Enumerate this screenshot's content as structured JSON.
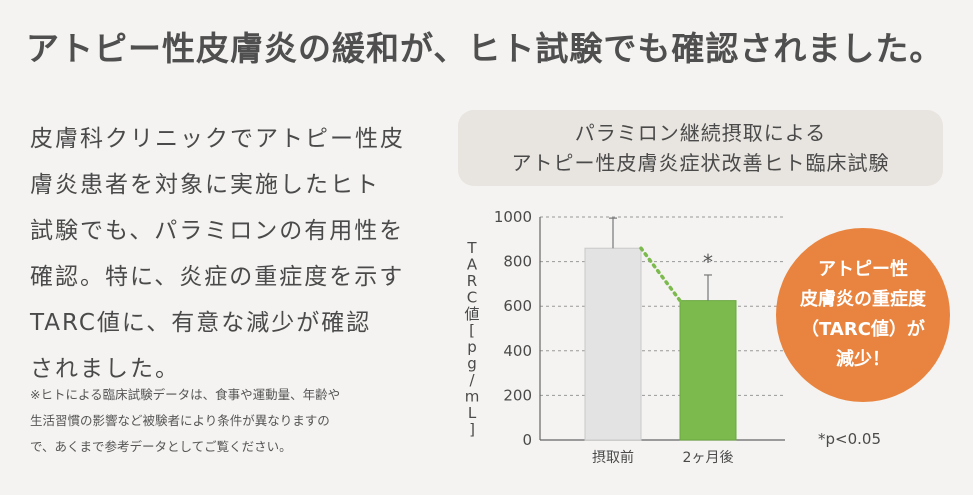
{
  "headline": "アトピー性皮膚炎の緩和が、ヒト試験でも確認されました。",
  "body_lines": [
    "皮膚科クリニックでアトピー性皮",
    "膚炎患者を対象に実施したヒト",
    "試験でも、パラミロンの有用性を",
    "確認。特に、炎症の重症度を示す",
    "TARC値に、有意な減少が確認",
    "されました。"
  ],
  "note_lines": [
    "※ヒトによる臨床試験データは、食事や運動量、年齢や",
    "生活習慣の影響など被験者により条件が異なりますの",
    "で、あくまで参考データとしてご覧ください。"
  ],
  "chart_title_lines": [
    "パラミロン継続摂取による",
    "アトピー性皮膚炎症状改善ヒト臨床試験"
  ],
  "badge": {
    "line1": "アトピー性",
    "line2_a": "皮膚炎の",
    "line2_b": "重症度",
    "line3": "（TARC値）が",
    "line4": "減少！"
  },
  "significance_note": "*p<0.05",
  "chart_data": {
    "type": "bar",
    "categories": [
      "摂取前",
      "2ヶ月後"
    ],
    "values": [
      860,
      625
    ],
    "error_upper": [
      995,
      740
    ],
    "ylabel": "TARC値[pg/mL]",
    "ylim": [
      0,
      1000
    ],
    "yticks": [
      "0",
      "200",
      "400",
      "600",
      "800",
      "1000"
    ],
    "significance_marker": "*",
    "bar_colors": [
      "#e3e3e3",
      "#7cba4d"
    ],
    "trend_color": "#7cba4d",
    "grid": true
  }
}
